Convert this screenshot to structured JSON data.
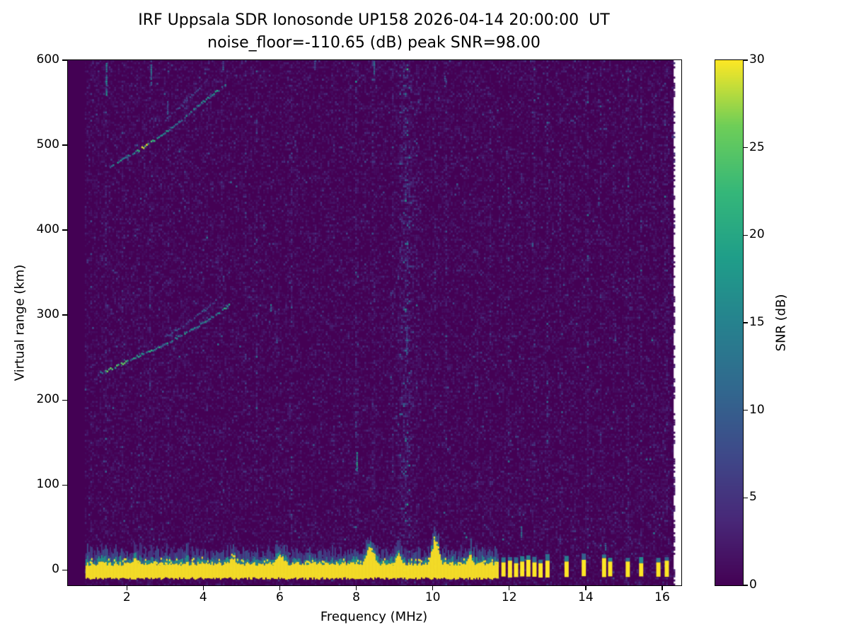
{
  "chart_data": {
    "type": "heatmap",
    "title": "IRF Uppsala SDR Ionosonde UP158 2026-04-14 20:00:00  UT",
    "subtitle": "noise_floor=-110.65 (dB) peak SNR=98.00",
    "xlabel": "Frequency (MHz)",
    "ylabel": "Virtual range (km)",
    "xlim": [
      0.46,
      16.5
    ],
    "ylim": [
      -18,
      600
    ],
    "xticks": [
      2,
      4,
      6,
      8,
      10,
      12,
      14,
      16
    ],
    "yticks": [
      0,
      100,
      200,
      300,
      400,
      500,
      600
    ],
    "grid": false,
    "data_extent": {
      "f_min": 0.9,
      "f_max": 16.3
    },
    "colorbar": {
      "label": "SNR (dB)",
      "min": 0,
      "max": 30,
      "ticks": [
        0,
        5,
        10,
        15,
        20,
        25,
        30
      ],
      "colormap": "viridis",
      "position": "right"
    },
    "colormap_stops": [
      {
        "t": 0.0,
        "c": "#440154"
      },
      {
        "t": 0.125,
        "c": "#482878"
      },
      {
        "t": 0.25,
        "c": "#3e4989"
      },
      {
        "t": 0.375,
        "c": "#31688e"
      },
      {
        "t": 0.5,
        "c": "#26828e"
      },
      {
        "t": 0.625,
        "c": "#1f9e89"
      },
      {
        "t": 0.75,
        "c": "#35b779"
      },
      {
        "t": 0.875,
        "c": "#6ece58"
      },
      {
        "t": 1.0,
        "c": "#fde725"
      }
    ],
    "noise": {
      "mean_db": 0.9,
      "threshold_db": 0.8
    },
    "rfi_stripes": [
      {
        "f": 1.05,
        "w": 0.03,
        "a": 0.5
      },
      {
        "f": 1.45,
        "w": 0.035,
        "a": 0.9
      },
      {
        "f": 1.9,
        "w": 0.03,
        "a": 0.5
      },
      {
        "f": 2.3,
        "w": 0.03,
        "a": 0.45
      },
      {
        "f": 2.62,
        "w": 0.035,
        "a": 0.7
      },
      {
        "f": 3.1,
        "w": 0.03,
        "a": 0.5
      },
      {
        "f": 3.55,
        "w": 0.03,
        "a": 0.4
      },
      {
        "f": 4.1,
        "w": 0.03,
        "a": 0.4
      },
      {
        "f": 4.5,
        "w": 0.035,
        "a": 0.55
      },
      {
        "f": 5.1,
        "w": 0.03,
        "a": 0.4
      },
      {
        "f": 5.4,
        "w": 0.035,
        "a": 0.6
      },
      {
        "f": 5.95,
        "w": 0.03,
        "a": 0.45
      },
      {
        "f": 6.3,
        "w": 0.04,
        "a": 0.7
      },
      {
        "f": 6.9,
        "w": 0.03,
        "a": 0.45
      },
      {
        "f": 7.4,
        "w": 0.03,
        "a": 0.4
      },
      {
        "f": 8.0,
        "w": 0.045,
        "a": 0.85
      },
      {
        "f": 8.45,
        "w": 0.04,
        "a": 0.7
      },
      {
        "f": 8.95,
        "w": 0.04,
        "a": 0.55
      },
      {
        "f": 9.3,
        "w": 0.17,
        "a": 1.5
      },
      {
        "f": 9.6,
        "w": 0.04,
        "a": 0.5
      },
      {
        "f": 10.05,
        "w": 0.04,
        "a": 0.55
      },
      {
        "f": 10.35,
        "w": 0.04,
        "a": 0.6
      },
      {
        "f": 10.85,
        "w": 0.03,
        "a": 0.45
      },
      {
        "f": 11.15,
        "w": 0.035,
        "a": 0.55
      },
      {
        "f": 11.5,
        "w": 0.03,
        "a": 0.45
      },
      {
        "f": 12.0,
        "w": 0.035,
        "a": 0.7
      },
      {
        "f": 12.3,
        "w": 0.035,
        "a": 0.6
      },
      {
        "f": 12.65,
        "w": 0.035,
        "a": 0.7
      },
      {
        "f": 13.0,
        "w": 0.04,
        "a": 0.8
      },
      {
        "f": 13.35,
        "w": 0.04,
        "a": 0.75
      },
      {
        "f": 13.7,
        "w": 0.035,
        "a": 0.55
      },
      {
        "f": 14.05,
        "w": 0.04,
        "a": 0.8
      },
      {
        "f": 14.4,
        "w": 0.035,
        "a": 0.6
      },
      {
        "f": 14.75,
        "w": 0.035,
        "a": 0.55
      },
      {
        "f": 15.1,
        "w": 0.04,
        "a": 0.7
      },
      {
        "f": 15.45,
        "w": 0.035,
        "a": 0.6
      },
      {
        "f": 15.8,
        "w": 0.035,
        "a": 0.55
      },
      {
        "f": 16.1,
        "w": 0.04,
        "a": 0.7
      }
    ],
    "ground_band": {
      "f_start": 0.92,
      "f_end": 11.72,
      "km_bottom": -10,
      "km_top": 7,
      "peak_db": 30
    },
    "ground_bumps": [
      {
        "f": 2.2,
        "top": 14,
        "w": 0.1
      },
      {
        "f": 4.75,
        "top": 15,
        "w": 0.12
      },
      {
        "f": 6.0,
        "top": 16,
        "w": 0.2
      },
      {
        "f": 8.35,
        "top": 26,
        "w": 0.18
      },
      {
        "f": 9.1,
        "top": 18,
        "w": 0.12
      },
      {
        "f": 10.05,
        "top": 33,
        "w": 0.15
      },
      {
        "f": 10.95,
        "top": 18,
        "w": 0.1
      }
    ],
    "ground_bars": [
      {
        "f": 11.85,
        "top": 9
      },
      {
        "f": 12.02,
        "top": 11
      },
      {
        "f": 12.18,
        "top": 8
      },
      {
        "f": 12.34,
        "top": 10
      },
      {
        "f": 12.5,
        "top": 12
      },
      {
        "f": 12.66,
        "top": 9
      },
      {
        "f": 12.82,
        "top": 8
      },
      {
        "f": 13.0,
        "top": 11
      },
      {
        "f": 13.5,
        "top": 10
      },
      {
        "f": 13.95,
        "top": 12
      },
      {
        "f": 14.48,
        "top": 14
      },
      {
        "f": 14.64,
        "top": 10
      },
      {
        "f": 15.1,
        "top": 10
      },
      {
        "f": 15.45,
        "top": 8
      },
      {
        "f": 15.9,
        "top": 9
      },
      {
        "f": 16.12,
        "top": 11
      }
    ],
    "traces": [
      {
        "name": "f-region-first-hop-o-mode",
        "db": 15,
        "bright": {
          "f0": 1.4,
          "f1": 2.0,
          "db": 24
        },
        "points": [
          [
            1.3,
            232
          ],
          [
            1.6,
            237
          ],
          [
            2.0,
            246
          ],
          [
            2.5,
            256
          ],
          [
            3.0,
            266
          ],
          [
            3.5,
            278
          ],
          [
            4.0,
            291
          ],
          [
            4.4,
            303
          ],
          [
            4.7,
            313
          ]
        ]
      },
      {
        "name": "f-region-first-hop-x-mode",
        "db": 7,
        "points": [
          [
            3.0,
            274
          ],
          [
            3.5,
            289
          ],
          [
            4.0,
            305
          ],
          [
            4.35,
            318
          ]
        ]
      },
      {
        "name": "f-region-second-hop",
        "db": 14,
        "bright": {
          "f0": 2.25,
          "f1": 2.75,
          "db": 27
        },
        "points": [
          [
            1.55,
            474
          ],
          [
            1.9,
            484
          ],
          [
            2.3,
            494
          ],
          [
            2.7,
            506
          ],
          [
            3.1,
            518
          ],
          [
            3.5,
            533
          ],
          [
            3.9,
            548
          ],
          [
            4.3,
            562
          ],
          [
            4.6,
            572
          ]
        ]
      },
      {
        "name": "second-hop-upper-split",
        "db": 6,
        "points": [
          [
            3.0,
            530
          ],
          [
            3.4,
            546
          ],
          [
            3.8,
            563
          ],
          [
            4.1,
            576
          ]
        ]
      }
    ],
    "dashes": [
      {
        "f": 1.45,
        "km": 560,
        "len": 38,
        "db": 13
      },
      {
        "f": 2.62,
        "km": 572,
        "len": 28,
        "db": 11
      },
      {
        "f": 3.05,
        "km": 538,
        "len": 16,
        "db": 9
      },
      {
        "f": 8.0,
        "km": 118,
        "len": 22,
        "db": 15
      },
      {
        "f": 8.45,
        "km": 585,
        "len": 14,
        "db": 12
      },
      {
        "f": 5.75,
        "km": 306,
        "len": 8,
        "db": 11
      },
      {
        "f": 9.3,
        "km": 255,
        "len": 30,
        "db": 7
      },
      {
        "f": 10.3,
        "km": 568,
        "len": 16,
        "db": 8
      },
      {
        "f": 4.5,
        "km": 590,
        "len": 10,
        "db": 9
      },
      {
        "f": 6.9,
        "km": 590,
        "len": 10,
        "db": 8
      },
      {
        "f": 12.3,
        "km": 40,
        "len": 12,
        "db": 10
      },
      {
        "f": 14.5,
        "km": 25,
        "len": 10,
        "db": 12
      }
    ]
  }
}
